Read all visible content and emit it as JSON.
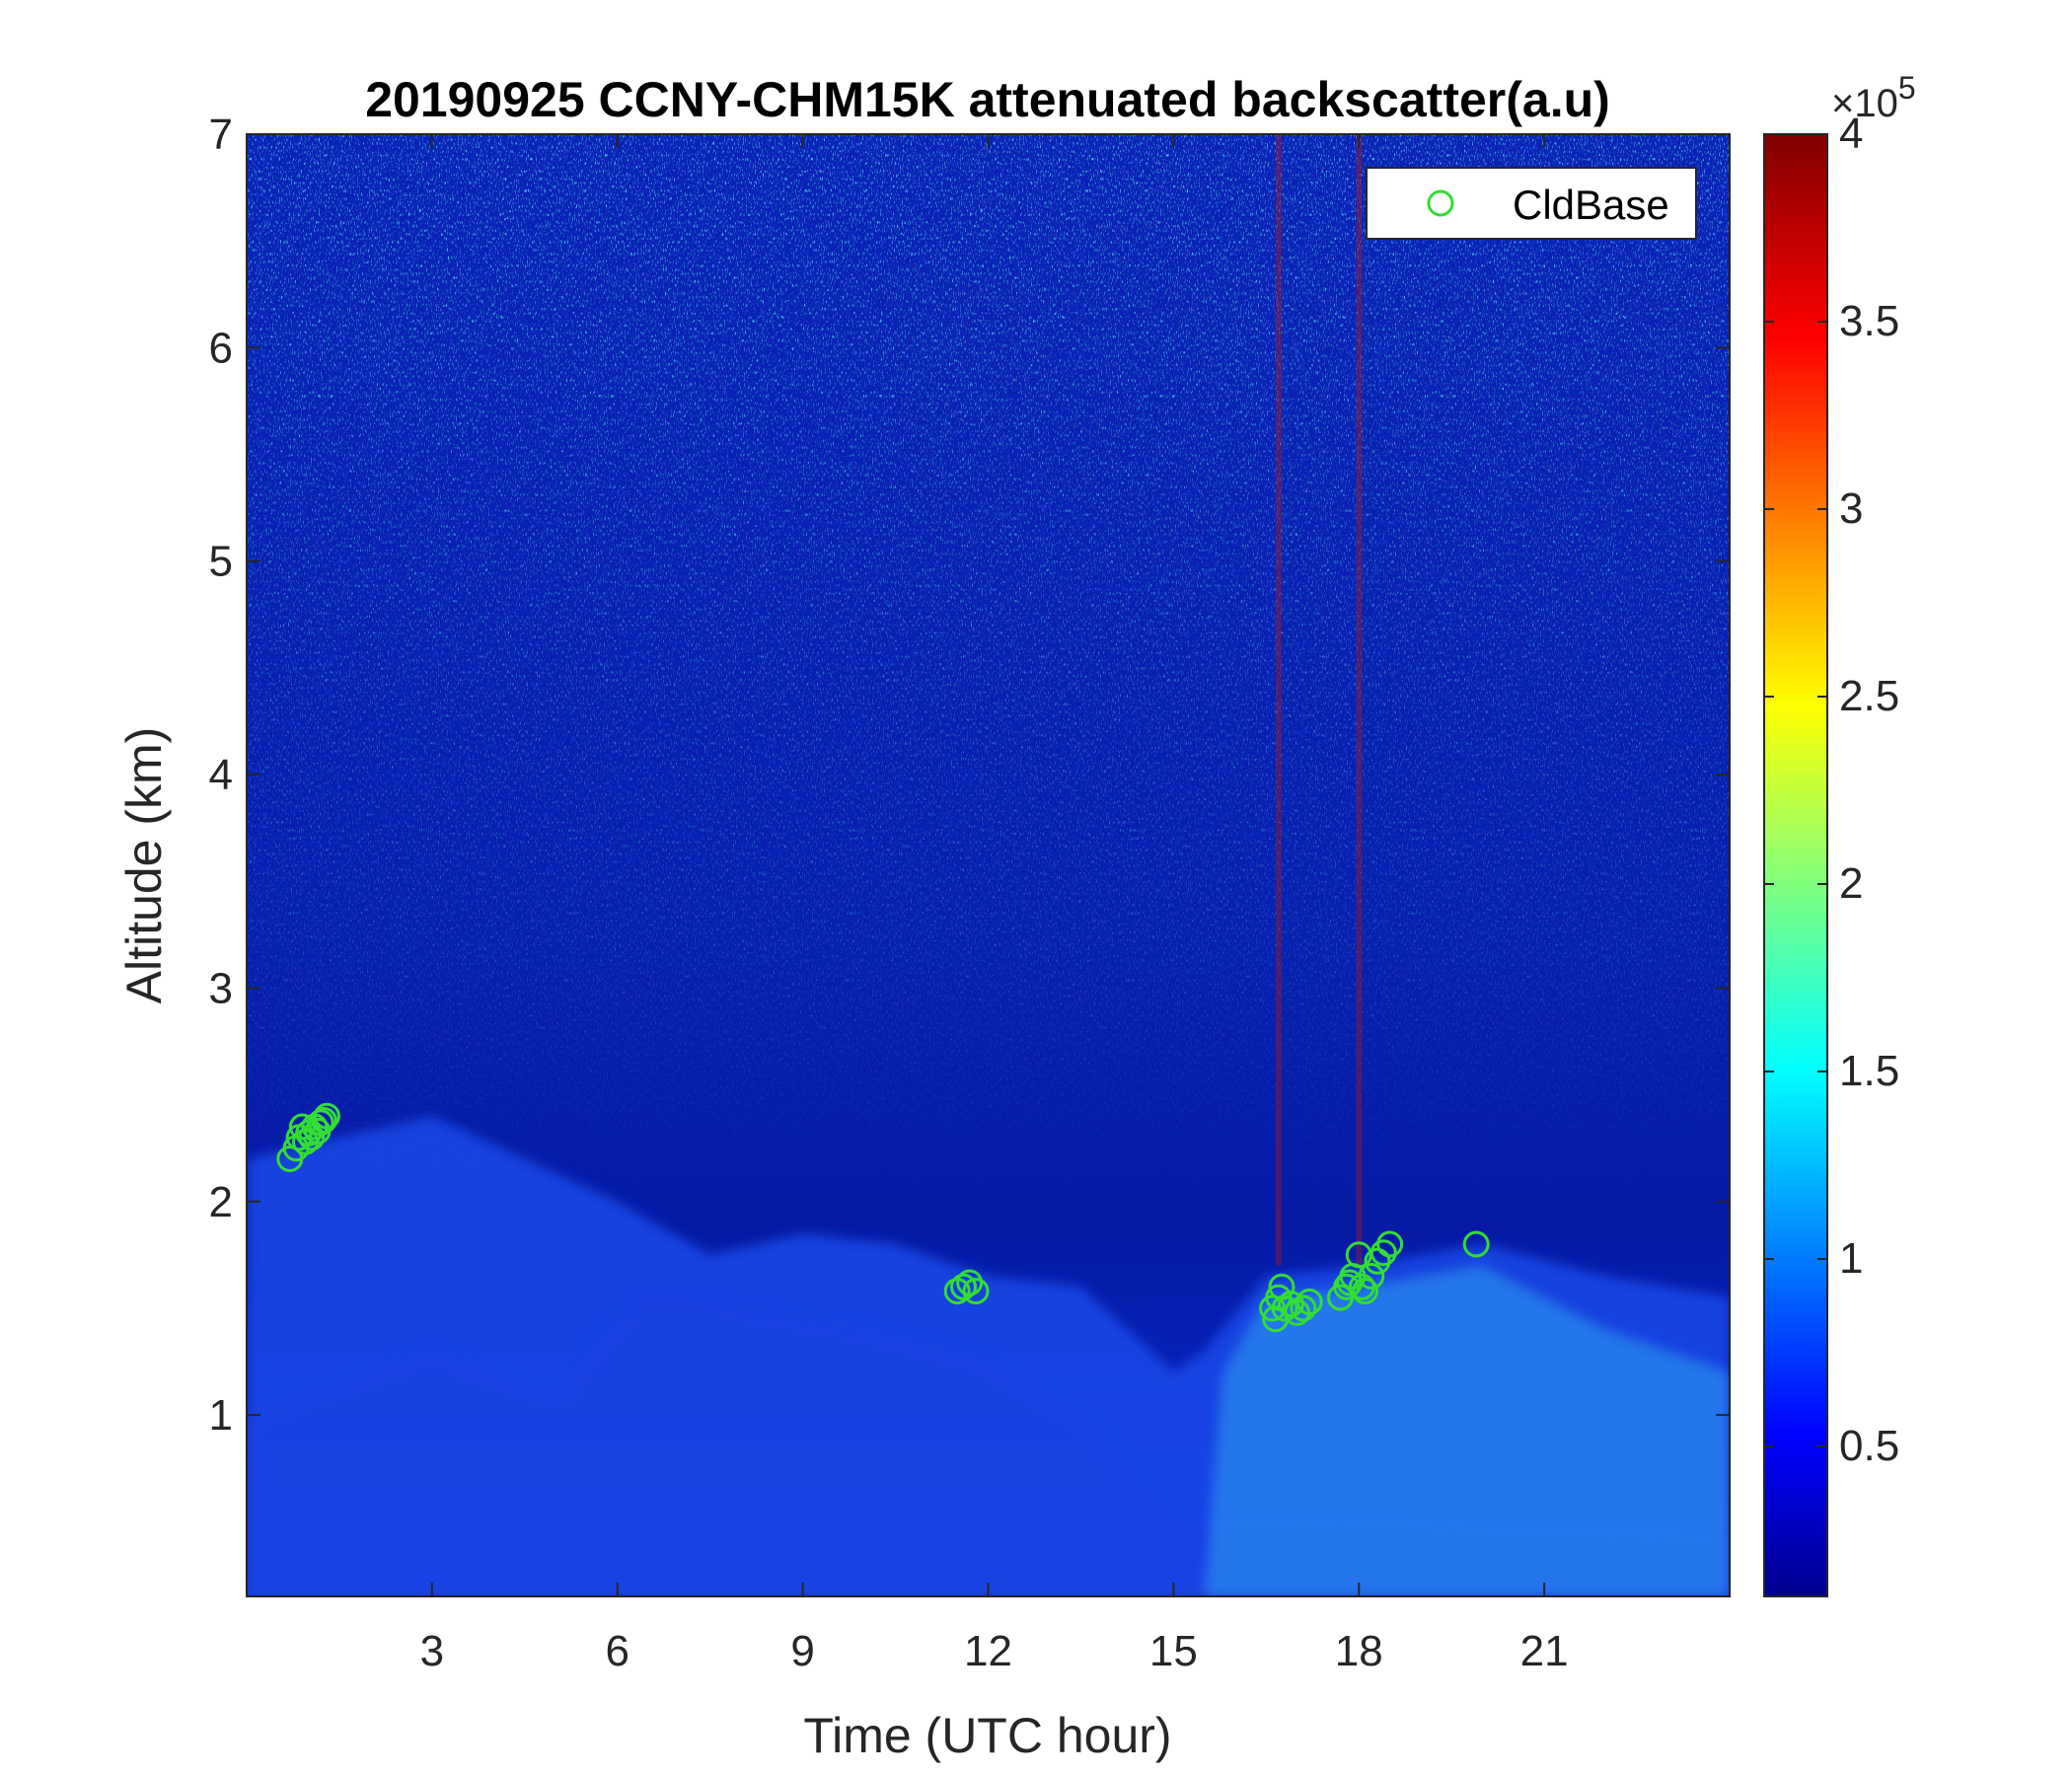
{
  "chart_data": {
    "type": "heatmap",
    "title": "20190925 CCNY-CHM15K attenuated backscatter(a.u)",
    "xlabel": "Time (UTC hour)",
    "ylabel": "Altitude (km)",
    "xlim": [
      0,
      24
    ],
    "ylim": [
      0.15,
      7
    ],
    "x_ticks": [
      3,
      6,
      9,
      12,
      15,
      18,
      21
    ],
    "x_tick_labels": [
      "3",
      "6",
      "9",
      "12",
      "15",
      "18",
      "21"
    ],
    "y_ticks": [
      1,
      2,
      3,
      4,
      5,
      6,
      7
    ],
    "y_tick_labels": [
      "1",
      "2",
      "3",
      "4",
      "5",
      "6",
      "7"
    ],
    "colorbar": {
      "colormap": "jet",
      "range": [
        0.1,
        4
      ],
      "ticks": [
        0.5,
        1,
        1.5,
        2,
        2.5,
        3,
        3.5,
        4
      ],
      "tick_labels": [
        "0.5",
        "1",
        "1.5",
        "2",
        "2.5",
        "3",
        "3.5",
        "4"
      ],
      "exponent_base": "×10",
      "exponent": "5"
    },
    "legend": {
      "position": "top-right",
      "entries": [
        "CldBase"
      ]
    },
    "series": [
      {
        "name": "CldBase",
        "marker": "circle",
        "color": "#33dd33",
        "x": [
          0.7,
          0.8,
          0.85,
          0.9,
          0.95,
          1.0,
          1.05,
          1.1,
          1.15,
          1.2,
          1.25,
          1.3,
          11.5,
          11.6,
          11.7,
          11.8,
          16.6,
          16.65,
          16.7,
          16.75,
          16.8,
          16.9,
          17.0,
          17.1,
          17.2,
          17.7,
          17.8,
          17.85,
          17.9,
          18.0,
          18.05,
          18.1,
          18.2,
          18.3,
          18.4,
          18.5,
          19.9
        ],
        "y": [
          2.2,
          2.25,
          2.3,
          2.35,
          2.28,
          2.32,
          2.3,
          2.35,
          2.33,
          2.37,
          2.38,
          2.4,
          1.58,
          1.6,
          1.62,
          1.58,
          1.5,
          1.45,
          1.55,
          1.6,
          1.5,
          1.52,
          1.48,
          1.5,
          1.53,
          1.55,
          1.6,
          1.62,
          1.65,
          1.75,
          1.6,
          1.58,
          1.65,
          1.72,
          1.76,
          1.8,
          1.8
        ]
      }
    ]
  }
}
